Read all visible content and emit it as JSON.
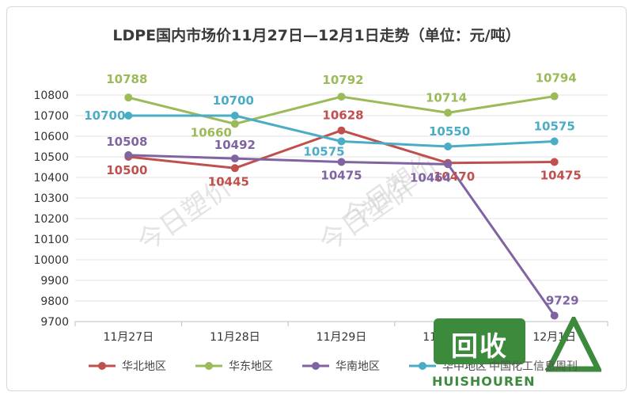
{
  "chart_data": {
    "type": "line",
    "title": "LDPE国内市场价11月27日—12月1日走势（单位：元/吨）",
    "categories": [
      "11月27日",
      "11月28日",
      "11月29日",
      "11月30日",
      "12月1日"
    ],
    "ylim": [
      9700,
      10800
    ],
    "yticks": [
      9700,
      9800,
      9900,
      10000,
      10100,
      10200,
      10300,
      10400,
      10500,
      10600,
      10700,
      10800
    ],
    "grid": true,
    "legend_position": "bottom",
    "series": [
      {
        "name": "华北地区",
        "color": "#c0504d",
        "values": [
          10500,
          10445,
          10628,
          10470,
          10475
        ],
        "labels": [
          "10500",
          "10445",
          "10628",
          "10470",
          "10475"
        ]
      },
      {
        "name": "华东地区",
        "color": "#9bbb59",
        "values": [
          10788,
          10660,
          10792,
          10714,
          10794
        ],
        "labels": [
          "10788",
          "10660",
          "10792",
          "10714",
          "10794"
        ]
      },
      {
        "name": "华南地区",
        "color": "#8064a2",
        "values": [
          10508,
          10492,
          10475,
          10464,
          9729
        ],
        "labels": [
          "10508",
          "10492",
          "10475",
          "10464",
          "9729"
        ]
      },
      {
        "name": "华中地区",
        "color": "#4bacc6",
        "values": [
          10700,
          10700,
          10575,
          10550,
          10575
        ],
        "labels": [
          "10700",
          "10700",
          "10575",
          "10550",
          "10575"
        ]
      }
    ]
  },
  "watermark": "今日塑价",
  "credit": "中国化工信息周刊",
  "logo": {
    "text": "回收",
    "subtext": "HUISHOUREN"
  }
}
